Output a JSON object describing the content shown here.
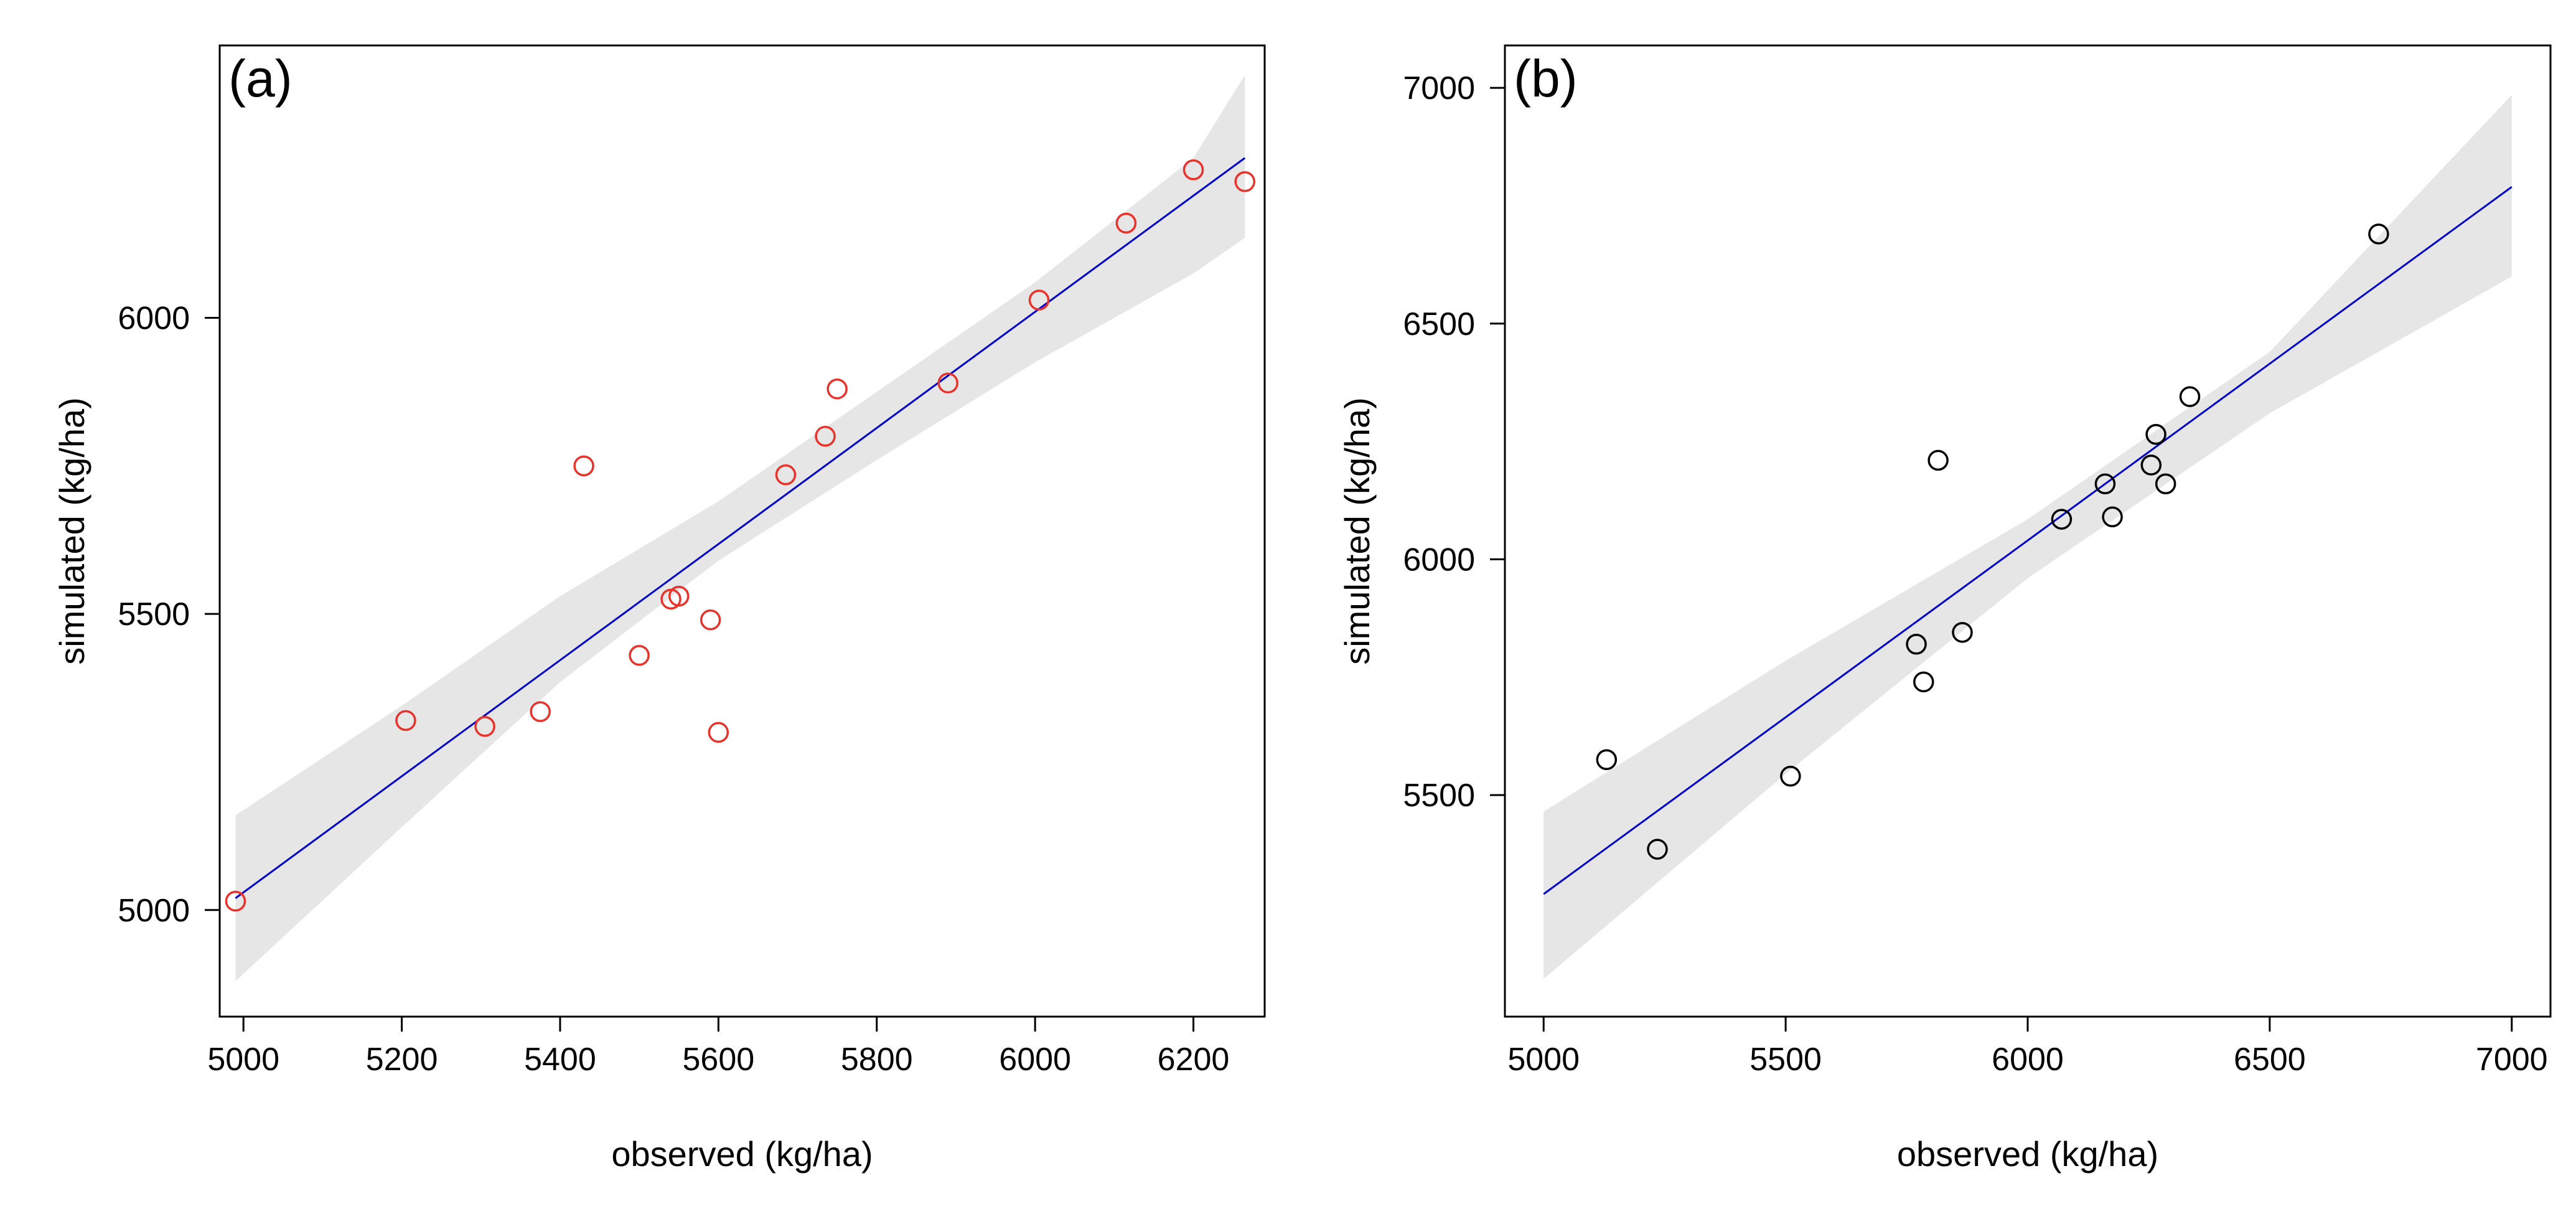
{
  "chart_data": [
    {
      "type": "scatter",
      "panel_label": "(a)",
      "xlabel": "observed (kg/ha)",
      "ylabel": "simulated (kg/ha)",
      "xlim": [
        4970,
        6290
      ],
      "ylim": [
        4820,
        6460
      ],
      "xticks": [
        5000,
        5200,
        5400,
        5600,
        5800,
        6000,
        6200
      ],
      "yticks": [
        5000,
        5500,
        6000
      ],
      "point_color": "#e8322a",
      "line_color": "#0000cc",
      "band_color": "#e6e6e6",
      "points": [
        {
          "x": 4990,
          "y": 5015
        },
        {
          "x": 5205,
          "y": 5320
        },
        {
          "x": 5305,
          "y": 5310
        },
        {
          "x": 5375,
          "y": 5335
        },
        {
          "x": 5430,
          "y": 5750
        },
        {
          "x": 5500,
          "y": 5430
        },
        {
          "x": 5540,
          "y": 5525
        },
        {
          "x": 5550,
          "y": 5530
        },
        {
          "x": 5590,
          "y": 5490
        },
        {
          "x": 5600,
          "y": 5300
        },
        {
          "x": 5685,
          "y": 5735
        },
        {
          "x": 5735,
          "y": 5800
        },
        {
          "x": 5750,
          "y": 5880
        },
        {
          "x": 5890,
          "y": 5890
        },
        {
          "x": 6005,
          "y": 6030
        },
        {
          "x": 6115,
          "y": 6160
        },
        {
          "x": 6200,
          "y": 6250
        },
        {
          "x": 6265,
          "y": 6230
        }
      ],
      "fit_line": {
        "x": [
          4990,
          6265
        ],
        "y": [
          5020,
          6270
        ]
      },
      "confidence_band": {
        "x": [
          4990,
          5200,
          5400,
          5600,
          5800,
          6000,
          6200,
          6265
        ],
        "lower": [
          4880,
          5140,
          5385,
          5590,
          5760,
          5925,
          6075,
          6135
        ],
        "upper": [
          5160,
          5345,
          5530,
          5690,
          5875,
          6060,
          6270,
          6410
        ]
      }
    },
    {
      "type": "scatter",
      "panel_label": "(b)",
      "xlabel": "observed (kg/ha)",
      "ylabel": "simulated (kg/ha)",
      "xlim": [
        4920,
        7080
      ],
      "ylim": [
        5030,
        7090
      ],
      "xticks": [
        5000,
        5500,
        6000,
        6500,
        7000
      ],
      "yticks": [
        5500,
        6000,
        6500,
        7000
      ],
      "point_color": "#000000",
      "line_color": "#0000cc",
      "band_color": "#e6e6e6",
      "points": [
        {
          "x": 5130,
          "y": 5575
        },
        {
          "x": 5235,
          "y": 5385
        },
        {
          "x": 5510,
          "y": 5540
        },
        {
          "x": 5770,
          "y": 5820
        },
        {
          "x": 5785,
          "y": 5740
        },
        {
          "x": 5815,
          "y": 6210
        },
        {
          "x": 5865,
          "y": 5845
        },
        {
          "x": 6070,
          "y": 6085
        },
        {
          "x": 6160,
          "y": 6160
        },
        {
          "x": 6175,
          "y": 6090
        },
        {
          "x": 6255,
          "y": 6200
        },
        {
          "x": 6265,
          "y": 6265
        },
        {
          "x": 6285,
          "y": 6160
        },
        {
          "x": 6335,
          "y": 6345
        },
        {
          "x": 6725,
          "y": 6690
        }
      ],
      "fit_line": {
        "x": [
          5000,
          7000
        ],
        "y": [
          5290,
          6790
        ]
      },
      "confidence_band": {
        "x": [
          5000,
          5500,
          6000,
          6500,
          7000
        ],
        "lower": [
          5110,
          5545,
          5960,
          6310,
          6600
        ],
        "upper": [
          5465,
          5785,
          6085,
          6440,
          6985
        ]
      }
    }
  ]
}
